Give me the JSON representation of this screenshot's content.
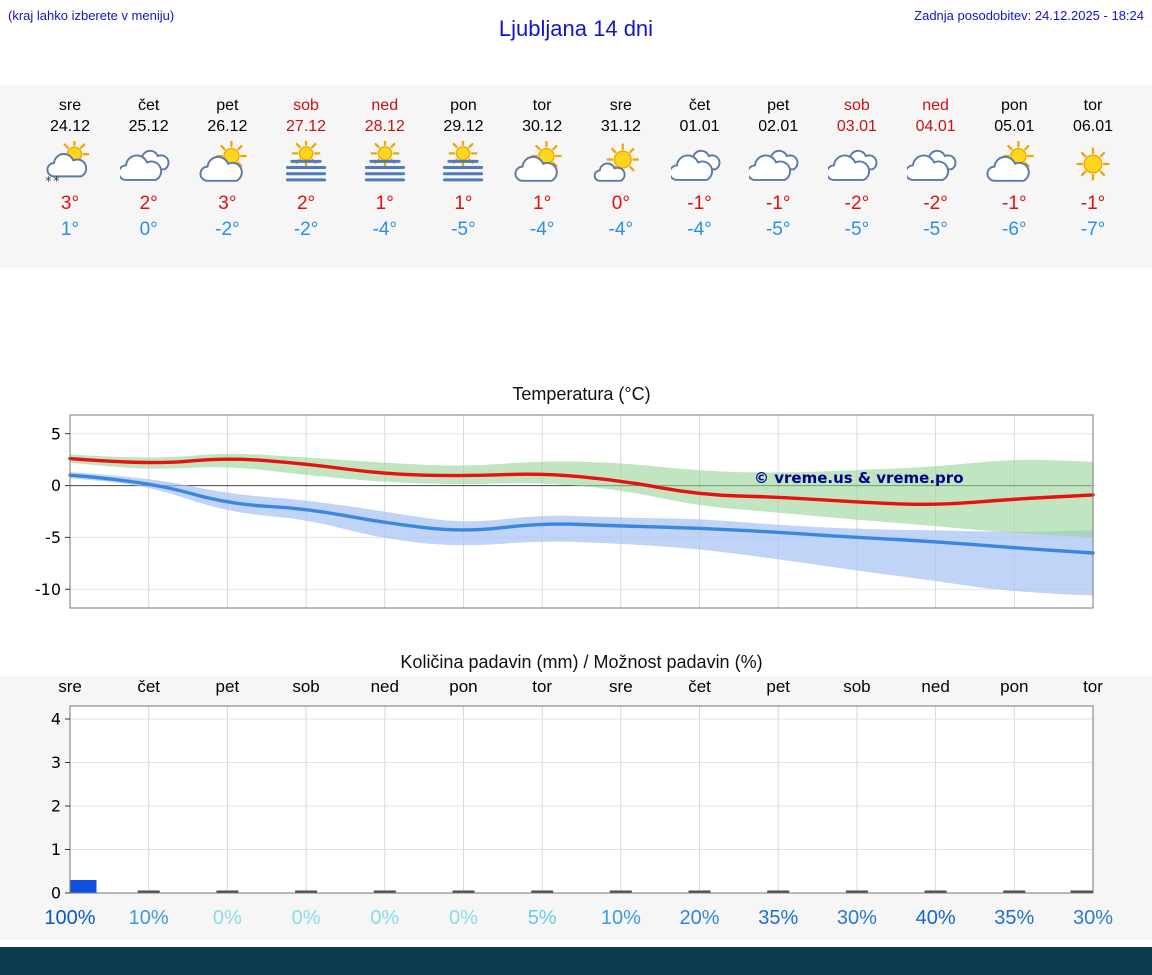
{
  "header": {
    "left_note": "(kraj lahko izberete v meniju)",
    "title": "Ljubljana 14 dni",
    "last_update": "Zadnja posodobitev: 24.12.2025 - 18:24",
    "text_color": "#1414cc"
  },
  "forecast": {
    "weekday_color": "#000000",
    "weekend_color": "#cc1111",
    "tmax_color": "#dd1111",
    "tmin_color": "#2b8fe8",
    "days": [
      {
        "name": "sre",
        "date": "24.12",
        "weekend": false,
        "icon": "partly-cloudy-snow",
        "tmax": "3°",
        "tmin": "1°"
      },
      {
        "name": "čet",
        "date": "25.12",
        "weekend": false,
        "icon": "cloudy",
        "tmax": "2°",
        "tmin": "0°"
      },
      {
        "name": "pet",
        "date": "26.12",
        "weekend": false,
        "icon": "partly-cloudy",
        "tmax": "3°",
        "tmin": "-2°"
      },
      {
        "name": "sob",
        "date": "27.12",
        "weekend": true,
        "icon": "sun-fog",
        "tmax": "2°",
        "tmin": "-2°"
      },
      {
        "name": "ned",
        "date": "28.12",
        "weekend": true,
        "icon": "sun-fog",
        "tmax": "1°",
        "tmin": "-4°"
      },
      {
        "name": "pon",
        "date": "29.12",
        "weekend": false,
        "icon": "sun-fog",
        "tmax": "1°",
        "tmin": "-5°"
      },
      {
        "name": "tor",
        "date": "30.12",
        "weekend": false,
        "icon": "partly-cloudy",
        "tmax": "1°",
        "tmin": "-4°"
      },
      {
        "name": "sre",
        "date": "31.12",
        "weekend": false,
        "icon": "mostly-sunny",
        "tmax": "0°",
        "tmin": "-4°"
      },
      {
        "name": "čet",
        "date": "01.01",
        "weekend": false,
        "icon": "cloudy",
        "tmax": "-1°",
        "tmin": "-4°"
      },
      {
        "name": "pet",
        "date": "02.01",
        "weekend": false,
        "icon": "cloudy",
        "tmax": "-1°",
        "tmin": "-5°"
      },
      {
        "name": "sob",
        "date": "03.01",
        "weekend": true,
        "icon": "cloudy",
        "tmax": "-2°",
        "tmin": "-5°"
      },
      {
        "name": "ned",
        "date": "04.01",
        "weekend": true,
        "icon": "cloudy",
        "tmax": "-2°",
        "tmin": "-5°"
      },
      {
        "name": "pon",
        "date": "05.01",
        "weekend": false,
        "icon": "partly-cloudy",
        "tmax": "-1°",
        "tmin": "-6°"
      },
      {
        "name": "tor",
        "date": "06.01",
        "weekend": false,
        "icon": "sunny",
        "tmax": "-1°",
        "tmin": "-7°"
      }
    ]
  },
  "chart_data": [
    {
      "type": "line",
      "title": "Temperatura (°C)",
      "x_categories": [
        "sre",
        "čet",
        "pet",
        "sob",
        "ned",
        "pon",
        "tor",
        "sre",
        "čet",
        "pet",
        "sob",
        "ned",
        "pon",
        "tor"
      ],
      "ylim": [
        -11.8,
        6.8
      ],
      "yticks": [
        5,
        0,
        -5,
        -10
      ],
      "grid": true,
      "watermark": "© vreme.us & vreme.pro",
      "watermark_color": "#00008b",
      "series": [
        {
          "name": "max-temp",
          "color": "#e81010",
          "values": [
            2.6,
            2.0,
            2.7,
            2.1,
            1.1,
            0.9,
            1.2,
            0.5,
            -0.9,
            -1.1,
            -1.6,
            -1.9,
            -1.3,
            -0.9
          ]
        },
        {
          "name": "min-temp",
          "color": "#3b87e0",
          "values": [
            1.0,
            0.4,
            -1.8,
            -2.2,
            -3.6,
            -4.5,
            -3.6,
            -3.9,
            -4.1,
            -4.5,
            -5.0,
            -5.4,
            -6.0,
            -6.5
          ]
        }
      ],
      "bands": [
        {
          "name": "min-temp-range",
          "color": "#a4c2f2",
          "opacity": 0.7,
          "upper": [
            1.3,
            0.8,
            -0.8,
            -1.4,
            -2.5,
            -3.7,
            -2.8,
            -3.1,
            -3.2,
            -3.8,
            -4.2,
            -4.3,
            -4.5,
            -4.3
          ],
          "lower": [
            0.7,
            0.0,
            -2.6,
            -3.2,
            -5.2,
            -5.9,
            -5.3,
            -5.6,
            -6.1,
            -7.1,
            -8.2,
            -9.2,
            -10.3,
            -10.6
          ]
        },
        {
          "name": "max-temp-range",
          "color": "#97d497",
          "opacity": 0.6,
          "upper": [
            3.0,
            2.5,
            3.2,
            2.7,
            2.2,
            1.8,
            2.4,
            2.2,
            1.4,
            1.2,
            1.5,
            1.8,
            2.6,
            2.3
          ],
          "lower": [
            2.2,
            1.5,
            1.9,
            1.0,
            0.3,
            0.1,
            0.3,
            -0.4,
            -2.0,
            -2.6,
            -3.3,
            -3.9,
            -4.6,
            -5.0
          ]
        }
      ]
    },
    {
      "type": "bar",
      "title": "Količina padavin (mm) / Možnost padavin (%)",
      "x_categories": [
        "sre",
        "čet",
        "pet",
        "sob",
        "ned",
        "pon",
        "tor",
        "sre",
        "čet",
        "pet",
        "sob",
        "ned",
        "pon",
        "tor"
      ],
      "ylim": [
        0,
        4.3
      ],
      "yticks": [
        0,
        1,
        2,
        3,
        4
      ],
      "grid": true,
      "bar_color": "#0f4fe0",
      "zero_mark_color": "#4d4d4d",
      "values_mm": [
        0.3,
        0,
        0,
        0,
        0,
        0,
        0,
        0,
        0,
        0,
        0,
        0,
        0,
        0
      ],
      "probability_pct": [
        100,
        10,
        0,
        0,
        0,
        0,
        5,
        10,
        20,
        35,
        30,
        40,
        35,
        30
      ],
      "pct_labels": [
        "100%",
        "10%",
        "0%",
        "0%",
        "0%",
        "0%",
        "5%",
        "10%",
        "20%",
        "35%",
        "30%",
        "40%",
        "35%",
        "30%"
      ],
      "pct_colors": [
        "#0a58c8",
        "#3f9ae0",
        "#8adce9",
        "#8adce9",
        "#8adce9",
        "#8adce9",
        "#63cfe2",
        "#3f9ae0",
        "#2f87d4",
        "#1c6fd0",
        "#2a7cd2",
        "#1465cc",
        "#1c6fd0",
        "#2a7cd2"
      ]
    }
  ],
  "footer": {
    "bar_color": "#0c3b4e"
  }
}
